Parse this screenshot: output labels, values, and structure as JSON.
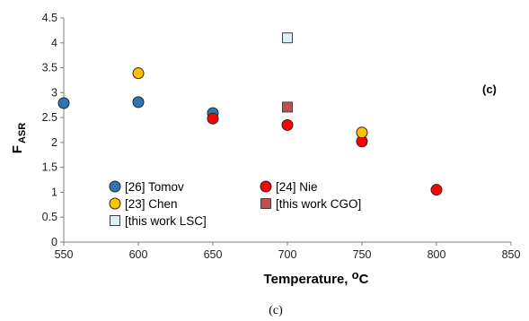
{
  "chart_data": {
    "type": "scatter",
    "xlabel": "Temperature, ",
    "xlabel_unit": "oC",
    "ylabel": "F",
    "ylabel_sub": "ASR",
    "xlim": [
      550,
      850
    ],
    "ylim": [
      0,
      4.5
    ],
    "xticks": [
      "550",
      "600",
      "650",
      "700",
      "750",
      "800",
      "850"
    ],
    "yticks": [
      "0",
      "0.5",
      "1",
      "1.5",
      "2",
      "2.5",
      "3",
      "3.5",
      "4",
      "4.5"
    ],
    "grid": false,
    "annotation": "(c)",
    "series": [
      {
        "name": "[26] Tomov",
        "marker": "circle",
        "color": "#2e75b6",
        "x": [
          550,
          600,
          650
        ],
        "y": [
          2.79,
          2.81,
          2.59
        ]
      },
      {
        "name": "[24] Nie",
        "marker": "circle",
        "color": "#ff0000",
        "x": [
          650,
          700,
          750,
          800
        ],
        "y": [
          2.48,
          2.35,
          2.02,
          1.05
        ]
      },
      {
        "name": "[23] Chen",
        "marker": "circle",
        "color": "#ffc000",
        "x": [
          600,
          750
        ],
        "y": [
          3.39,
          2.2
        ]
      },
      {
        "name": "[this work CGO]",
        "marker": "square",
        "color": "#c0504d",
        "x": [
          700
        ],
        "y": [
          2.71
        ]
      },
      {
        "name": "[this work LSC]",
        "marker": "square",
        "color": "#ddeef6",
        "x": [
          700
        ],
        "y": [
          4.1
        ]
      }
    ]
  },
  "caption": "(c)"
}
